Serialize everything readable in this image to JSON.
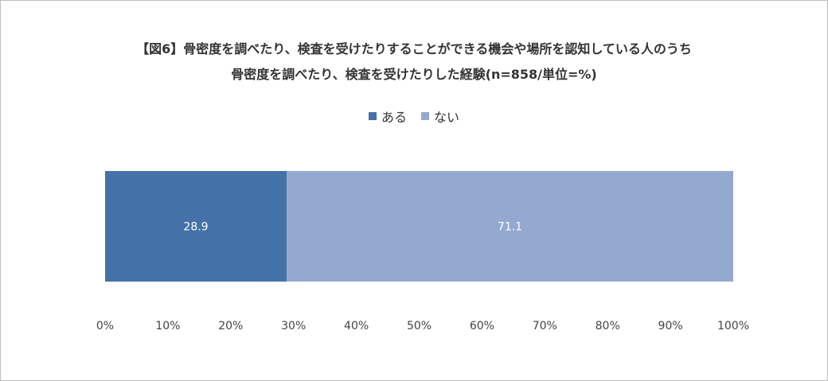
{
  "chart_data": {
    "type": "bar",
    "orientation": "horizontal-stacked",
    "title": "【図6】骨密度を調べたり、検査を受けたりすることができる機会や場所を認知している人のうち",
    "subtitle": "骨密度を調べたり、検査を受けたりした経験(n=858/単位=%)",
    "xlim": [
      0,
      100
    ],
    "x_ticks": [
      "0%",
      "10%",
      "20%",
      "30%",
      "40%",
      "50%",
      "60%",
      "70%",
      "80%",
      "90%",
      "100%"
    ],
    "grid": false,
    "legend_position": "top-center",
    "series": [
      {
        "name": "ある",
        "value": 28.9,
        "label": "28.9",
        "color": "#4472a8"
      },
      {
        "name": "ない",
        "value": 71.1,
        "label": "71.1",
        "color": "#94a9cf"
      }
    ]
  }
}
